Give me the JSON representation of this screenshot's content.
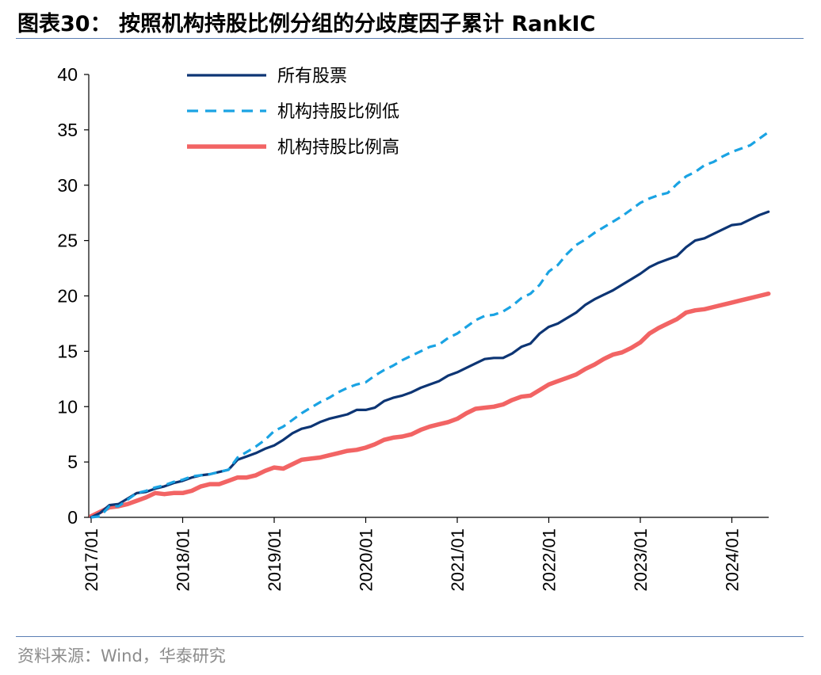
{
  "title": "图表30： 按照机构持股比例分组的分歧度因子累计 RankIC",
  "source": "资料来源：Wind，华泰研究",
  "colors": {
    "all": "#0d3574",
    "low": "#1aa3e3",
    "high": "#f26464",
    "rule": "#5b7fb4"
  },
  "chart_data": {
    "type": "line",
    "title": "按照机构持股比例分组的分歧度因子累计 RankIC",
    "ylim": [
      0,
      40
    ],
    "yticks": [
      0,
      5,
      10,
      15,
      20,
      25,
      30,
      35,
      40
    ],
    "xlim": [
      2017.0,
      2024.4
    ],
    "xticks": [
      "2017/01",
      "2018/01",
      "2019/01",
      "2020/01",
      "2021/01",
      "2022/01",
      "2023/01",
      "2024/01"
    ],
    "legend_position": "top",
    "series": [
      {
        "name": "所有股票",
        "style": "solid",
        "points": [
          [
            2017.0,
            0
          ],
          [
            2017.1,
            0.4
          ],
          [
            2017.2,
            1.1
          ],
          [
            2017.3,
            1.2
          ],
          [
            2017.4,
            1.7
          ],
          [
            2017.5,
            2.2
          ],
          [
            2017.6,
            2.3
          ],
          [
            2017.7,
            2.6
          ],
          [
            2017.8,
            2.8
          ],
          [
            2017.9,
            3.1
          ],
          [
            2018.0,
            3.3
          ],
          [
            2018.1,
            3.6
          ],
          [
            2018.2,
            3.8
          ],
          [
            2018.3,
            3.9
          ],
          [
            2018.4,
            4.1
          ],
          [
            2018.5,
            4.3
          ],
          [
            2018.6,
            5.2
          ],
          [
            2018.7,
            5.5
          ],
          [
            2018.8,
            5.8
          ],
          [
            2018.9,
            6.2
          ],
          [
            2019.0,
            6.5
          ],
          [
            2019.1,
            7.0
          ],
          [
            2019.2,
            7.6
          ],
          [
            2019.3,
            8.0
          ],
          [
            2019.4,
            8.2
          ],
          [
            2019.5,
            8.6
          ],
          [
            2019.6,
            8.9
          ],
          [
            2019.7,
            9.1
          ],
          [
            2019.8,
            9.3
          ],
          [
            2019.9,
            9.7
          ],
          [
            2020.0,
            9.7
          ],
          [
            2020.1,
            9.9
          ],
          [
            2020.2,
            10.5
          ],
          [
            2020.3,
            10.8
          ],
          [
            2020.4,
            11.0
          ],
          [
            2020.5,
            11.3
          ],
          [
            2020.6,
            11.7
          ],
          [
            2020.7,
            12.0
          ],
          [
            2020.8,
            12.3
          ],
          [
            2020.9,
            12.8
          ],
          [
            2021.0,
            13.1
          ],
          [
            2021.1,
            13.5
          ],
          [
            2021.2,
            13.9
          ],
          [
            2021.3,
            14.3
          ],
          [
            2021.4,
            14.4
          ],
          [
            2021.5,
            14.4
          ],
          [
            2021.6,
            14.8
          ],
          [
            2021.7,
            15.4
          ],
          [
            2021.8,
            15.7
          ],
          [
            2021.9,
            16.6
          ],
          [
            2022.0,
            17.2
          ],
          [
            2022.1,
            17.5
          ],
          [
            2022.2,
            18.0
          ],
          [
            2022.3,
            18.5
          ],
          [
            2022.4,
            19.2
          ],
          [
            2022.5,
            19.7
          ],
          [
            2022.6,
            20.1
          ],
          [
            2022.7,
            20.5
          ],
          [
            2022.8,
            21.0
          ],
          [
            2022.9,
            21.5
          ],
          [
            2023.0,
            22.0
          ],
          [
            2023.1,
            22.6
          ],
          [
            2023.2,
            23.0
          ],
          [
            2023.3,
            23.3
          ],
          [
            2023.4,
            23.6
          ],
          [
            2023.5,
            24.4
          ],
          [
            2023.6,
            25.0
          ],
          [
            2023.7,
            25.2
          ],
          [
            2023.8,
            25.6
          ],
          [
            2023.9,
            26.0
          ],
          [
            2024.0,
            26.4
          ],
          [
            2024.1,
            26.5
          ],
          [
            2024.2,
            26.9
          ],
          [
            2024.3,
            27.3
          ],
          [
            2024.4,
            27.6
          ]
        ]
      },
      {
        "name": "机构持股比例低",
        "style": "dashed",
        "points": [
          [
            2017.0,
            0
          ],
          [
            2017.1,
            0.1
          ],
          [
            2017.2,
            1.0
          ],
          [
            2017.3,
            1.0
          ],
          [
            2017.4,
            1.6
          ],
          [
            2017.5,
            2.2
          ],
          [
            2017.6,
            2.4
          ],
          [
            2017.7,
            2.7
          ],
          [
            2017.8,
            2.9
          ],
          [
            2017.9,
            3.2
          ],
          [
            2018.0,
            3.4
          ],
          [
            2018.1,
            3.7
          ],
          [
            2018.2,
            3.8
          ],
          [
            2018.3,
            3.9
          ],
          [
            2018.4,
            4.1
          ],
          [
            2018.5,
            4.3
          ],
          [
            2018.6,
            5.4
          ],
          [
            2018.7,
            5.9
          ],
          [
            2018.8,
            6.4
          ],
          [
            2018.9,
            7.0
          ],
          [
            2019.0,
            7.8
          ],
          [
            2019.1,
            8.2
          ],
          [
            2019.2,
            8.8
          ],
          [
            2019.3,
            9.4
          ],
          [
            2019.4,
            9.9
          ],
          [
            2019.5,
            10.4
          ],
          [
            2019.6,
            10.8
          ],
          [
            2019.7,
            11.3
          ],
          [
            2019.8,
            11.7
          ],
          [
            2019.9,
            12.0
          ],
          [
            2020.0,
            12.2
          ],
          [
            2020.1,
            12.8
          ],
          [
            2020.2,
            13.3
          ],
          [
            2020.3,
            13.7
          ],
          [
            2020.4,
            14.2
          ],
          [
            2020.5,
            14.6
          ],
          [
            2020.6,
            15.0
          ],
          [
            2020.7,
            15.4
          ],
          [
            2020.8,
            15.6
          ],
          [
            2020.9,
            16.2
          ],
          [
            2021.0,
            16.6
          ],
          [
            2021.1,
            17.2
          ],
          [
            2021.2,
            17.8
          ],
          [
            2021.3,
            18.2
          ],
          [
            2021.4,
            18.3
          ],
          [
            2021.5,
            18.6
          ],
          [
            2021.6,
            19.1
          ],
          [
            2021.7,
            19.8
          ],
          [
            2021.8,
            20.2
          ],
          [
            2021.9,
            21.0
          ],
          [
            2022.0,
            22.2
          ],
          [
            2022.1,
            22.8
          ],
          [
            2022.2,
            23.8
          ],
          [
            2022.3,
            24.6
          ],
          [
            2022.4,
            25.1
          ],
          [
            2022.5,
            25.7
          ],
          [
            2022.6,
            26.2
          ],
          [
            2022.7,
            26.7
          ],
          [
            2022.8,
            27.2
          ],
          [
            2022.9,
            27.8
          ],
          [
            2023.0,
            28.4
          ],
          [
            2023.1,
            28.8
          ],
          [
            2023.2,
            29.1
          ],
          [
            2023.3,
            29.3
          ],
          [
            2023.4,
            30.1
          ],
          [
            2023.5,
            30.8
          ],
          [
            2023.6,
            31.2
          ],
          [
            2023.7,
            31.8
          ],
          [
            2023.8,
            32.1
          ],
          [
            2023.9,
            32.6
          ],
          [
            2024.0,
            33.0
          ],
          [
            2024.1,
            33.3
          ],
          [
            2024.2,
            33.6
          ],
          [
            2024.3,
            34.2
          ],
          [
            2024.4,
            34.8
          ]
        ]
      },
      {
        "name": "机构持股比例高",
        "style": "solid-thick",
        "points": [
          [
            2017.0,
            0.1
          ],
          [
            2017.1,
            0.5
          ],
          [
            2017.2,
            0.9
          ],
          [
            2017.3,
            1.0
          ],
          [
            2017.4,
            1.2
          ],
          [
            2017.5,
            1.5
          ],
          [
            2017.6,
            1.8
          ],
          [
            2017.7,
            2.2
          ],
          [
            2017.8,
            2.1
          ],
          [
            2017.9,
            2.2
          ],
          [
            2018.0,
            2.2
          ],
          [
            2018.1,
            2.4
          ],
          [
            2018.2,
            2.8
          ],
          [
            2018.3,
            3.0
          ],
          [
            2018.4,
            3.0
          ],
          [
            2018.5,
            3.3
          ],
          [
            2018.6,
            3.6
          ],
          [
            2018.7,
            3.6
          ],
          [
            2018.8,
            3.8
          ],
          [
            2018.9,
            4.2
          ],
          [
            2019.0,
            4.5
          ],
          [
            2019.1,
            4.4
          ],
          [
            2019.2,
            4.8
          ],
          [
            2019.3,
            5.2
          ],
          [
            2019.4,
            5.3
          ],
          [
            2019.5,
            5.4
          ],
          [
            2019.6,
            5.6
          ],
          [
            2019.7,
            5.8
          ],
          [
            2019.8,
            6.0
          ],
          [
            2019.9,
            6.1
          ],
          [
            2020.0,
            6.3
          ],
          [
            2020.1,
            6.6
          ],
          [
            2020.2,
            7.0
          ],
          [
            2020.3,
            7.2
          ],
          [
            2020.4,
            7.3
          ],
          [
            2020.5,
            7.5
          ],
          [
            2020.6,
            7.9
          ],
          [
            2020.7,
            8.2
          ],
          [
            2020.8,
            8.4
          ],
          [
            2020.9,
            8.6
          ],
          [
            2021.0,
            8.9
          ],
          [
            2021.1,
            9.4
          ],
          [
            2021.2,
            9.8
          ],
          [
            2021.3,
            9.9
          ],
          [
            2021.4,
            10.0
          ],
          [
            2021.5,
            10.2
          ],
          [
            2021.6,
            10.6
          ],
          [
            2021.7,
            10.9
          ],
          [
            2021.8,
            11.0
          ],
          [
            2021.9,
            11.5
          ],
          [
            2022.0,
            12.0
          ],
          [
            2022.1,
            12.3
          ],
          [
            2022.2,
            12.6
          ],
          [
            2022.3,
            12.9
          ],
          [
            2022.4,
            13.4
          ],
          [
            2022.5,
            13.8
          ],
          [
            2022.6,
            14.3
          ],
          [
            2022.7,
            14.7
          ],
          [
            2022.8,
            14.9
          ],
          [
            2022.9,
            15.3
          ],
          [
            2023.0,
            15.8
          ],
          [
            2023.1,
            16.6
          ],
          [
            2023.2,
            17.1
          ],
          [
            2023.3,
            17.5
          ],
          [
            2023.4,
            17.9
          ],
          [
            2023.5,
            18.5
          ],
          [
            2023.6,
            18.7
          ],
          [
            2023.7,
            18.8
          ],
          [
            2023.8,
            19.0
          ],
          [
            2023.9,
            19.2
          ],
          [
            2024.0,
            19.4
          ],
          [
            2024.1,
            19.6
          ],
          [
            2024.2,
            19.8
          ],
          [
            2024.3,
            20.0
          ],
          [
            2024.4,
            20.2
          ]
        ]
      }
    ]
  }
}
